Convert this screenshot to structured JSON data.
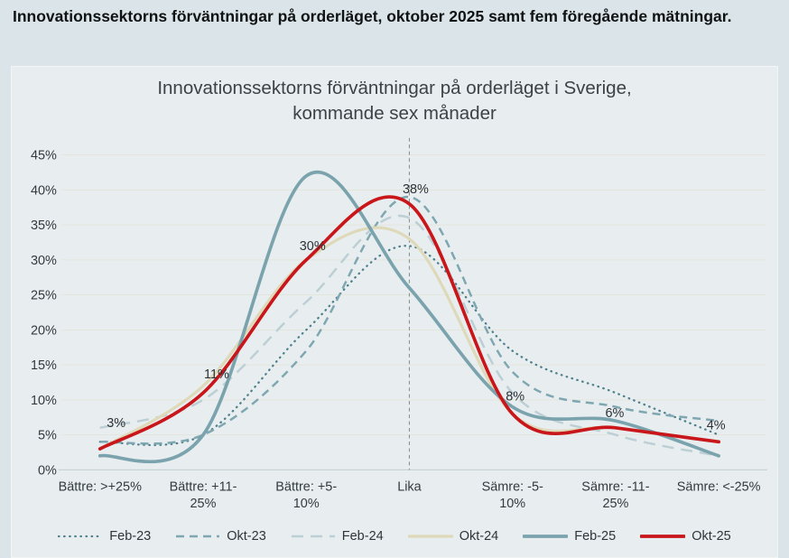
{
  "page": {
    "heading": "Innovationssektorns förväntningar på orderläget, oktober 2025 samt fem föregående mätningar."
  },
  "chart": {
    "title_line1": "Innovationssektorns förväntningar på orderläget i Sverige,",
    "title_line2": "kommande sex månader"
  },
  "colors": {
    "page_background": "#dbe4e8",
    "panel_background": "#e8eef0",
    "gridline": "#e4e5db",
    "axis_line": "#c9d2d5",
    "reference_line": "#8a9396",
    "text": "#333a40",
    "accent_red": "#c9161a"
  },
  "chart_data": {
    "type": "line",
    "title": "Innovationssektorns förväntningar på orderläget i Sverige, kommande sex månader",
    "categories": [
      "Bättre: >+25%",
      "Bättre: +11-25%",
      "Bättre: +5-10%",
      "Lika",
      "Sämre: -5-10%",
      "Sämre: -11-25%",
      "Sämre: <-25%"
    ],
    "category_label_lines": [
      [
        "Bättre: >+25%"
      ],
      [
        "Bättre: +11-",
        "25%"
      ],
      [
        "Bättre: +5-",
        "10%"
      ],
      [
        "Lika"
      ],
      [
        "Sämre: -5-",
        "10%"
      ],
      [
        "Sämre: -11-",
        "25%"
      ],
      [
        "Sämre: <-25%"
      ]
    ],
    "y_axis": {
      "min": 0,
      "max": 45,
      "step": 5,
      "tick_labels": [
        "0%",
        "5%",
        "10%",
        "15%",
        "20%",
        "25%",
        "30%",
        "35%",
        "40%",
        "45%"
      ]
    },
    "grid": true,
    "legend_position": "bottom",
    "reference_line": {
      "category": "Lika",
      "orientation": "vertical",
      "style": "dashed"
    },
    "series": [
      {
        "name": "Feb-23",
        "style": "dotted",
        "color": "#4e7f8c",
        "values": [
          4,
          5,
          20,
          32,
          17,
          11,
          5
        ]
      },
      {
        "name": "Okt-23",
        "style": "dashed",
        "color": "#7fa7b1",
        "values": [
          4,
          5,
          17,
          39,
          14,
          9,
          7
        ]
      },
      {
        "name": "Feb-24",
        "style": "long-dash",
        "color": "#bccfd5",
        "values": [
          6,
          10,
          24,
          36,
          11,
          5,
          2
        ]
      },
      {
        "name": "Okt-24",
        "style": "solid",
        "color": "#ded9b9",
        "values": [
          3,
          12,
          30,
          33,
          8,
          6,
          4
        ]
      },
      {
        "name": "Feb-25",
        "style": "solid-thick",
        "color": "#7ba3ad",
        "values": [
          2,
          5,
          42,
          26,
          9,
          7,
          2
        ]
      },
      {
        "name": "Okt-25",
        "style": "solid-thick",
        "color": "#c9161a",
        "values": [
          3,
          11,
          30,
          38,
          8,
          6,
          4
        ],
        "data_labels": [
          "3%",
          "11%",
          "30%",
          "38%",
          "8%",
          "6%",
          "4%"
        ]
      }
    ]
  }
}
